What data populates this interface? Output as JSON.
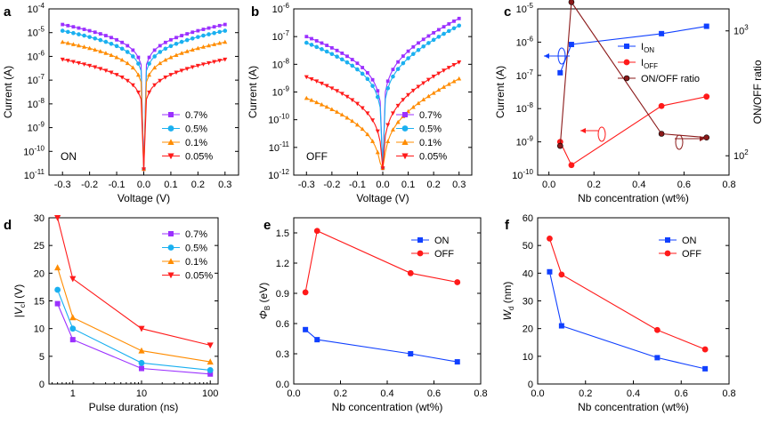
{
  "figure": {
    "panel_letters": [
      "a",
      "b",
      "c",
      "d",
      "e",
      "f"
    ]
  },
  "colors": {
    "p07": "#9b30ff",
    "p05": "#1ab0f0",
    "p01": "#ff8c00",
    "p005": "#ff1a1a",
    "blue": "#1040ff",
    "red": "#ff1a1a",
    "darkred": "#8b1a1a"
  },
  "chart_data": [
    {
      "panel": "a",
      "type": "line",
      "log_y": true,
      "xlim": [
        -0.35,
        0.35
      ],
      "ylim_exp": [
        -11,
        -4
      ],
      "xticks": [
        "-0.3",
        "-0.2",
        "-0.1",
        "0.0",
        "0.1",
        "0.2",
        "0.3"
      ],
      "yticks": [
        "10-11",
        "10-10",
        "10-9",
        "10-8",
        "10-7",
        "10-6",
        "10-5",
        "10-4"
      ],
      "xlabel": "Voltage (V)",
      "ylabel": "Current (A)",
      "annotation": "ON",
      "legend_position": "lower-right",
      "series": [
        {
          "name": "0.7%",
          "marker": "square",
          "color_key": "p07",
          "i_at_max": 2.2e-05
        },
        {
          "name": "0.5%",
          "marker": "circle",
          "color_key": "p05",
          "i_at_max": 1.2e-05
        },
        {
          "name": "0.1%",
          "marker": "triangle-up",
          "color_key": "p01",
          "i_at_max": 4e-06
        },
        {
          "name": "0.05%",
          "marker": "triangle-down",
          "color_key": "p005",
          "i_at_max": 7.5e-07
        }
      ]
    },
    {
      "panel": "b",
      "type": "line",
      "log_y": true,
      "xlim": [
        -0.35,
        0.35
      ],
      "ylim_exp": [
        -12,
        -6
      ],
      "xticks": [
        "-0.3",
        "-0.2",
        "-0.1",
        "0.0",
        "0.1",
        "0.2",
        "0.3"
      ],
      "yticks": [
        "10-12",
        "10-11",
        "10-10",
        "10-9",
        "10-8",
        "10-7",
        "10-6"
      ],
      "xlabel": "Voltage (V)",
      "ylabel": "Current (A)",
      "annotation": "OFF",
      "legend_position": "lower-right",
      "series": [
        {
          "name": "0.7%",
          "marker": "square",
          "color_key": "p07",
          "i_at_neg": 1e-07,
          "i_at_pos": 4.5e-07
        },
        {
          "name": "0.5%",
          "marker": "circle",
          "color_key": "p05",
          "i_at_neg": 6e-08,
          "i_at_pos": 2.5e-07
        },
        {
          "name": "0.1%",
          "marker": "triangle-up",
          "color_key": "p01",
          "i_at_neg": 6e-10,
          "i_at_pos": 3e-09
        },
        {
          "name": "0.05%",
          "marker": "triangle-down",
          "color_key": "p005",
          "i_at_neg": 3.5e-09,
          "i_at_pos": 1.2e-08
        }
      ]
    },
    {
      "panel": "c",
      "type": "line",
      "log_y": true,
      "xlim": [
        -0.05,
        0.8
      ],
      "ylim_exp": [
        -10,
        -5
      ],
      "y2_log": true,
      "y2lim": [
        70,
        1500
      ],
      "xticks": [
        "0.0",
        "0.2",
        "0.4",
        "0.6",
        "0.8"
      ],
      "yticks": [
        "10-10",
        "10-9",
        "10-8",
        "10-7",
        "10-6",
        "10-5"
      ],
      "y2ticks": [
        "102",
        "103"
      ],
      "xlabel": "Nb concentration (wt%)",
      "ylabel": "Current (A)",
      "y2label": "ON/OFF ratio",
      "legend_position": "middle-right",
      "series": [
        {
          "name": "ION",
          "name_main": "I",
          "name_sub": "ON",
          "marker": "square",
          "color_key": "blue",
          "axis": "left",
          "x": [
            0.05,
            0.1,
            0.5,
            0.7
          ],
          "y": [
            1.2e-07,
            8.5e-07,
            1.8e-06,
            3e-06
          ]
        },
        {
          "name": "IOFF",
          "name_main": "I",
          "name_sub": "OFF",
          "marker": "circle",
          "color_key": "red",
          "axis": "left",
          "x": [
            0.05,
            0.1,
            0.5,
            0.7
          ],
          "y": [
            1e-09,
            2e-10,
            1.2e-08,
            2.3e-08
          ]
        },
        {
          "name": "ON/OFF ratio",
          "marker": "ball",
          "color_key": "darkred",
          "axis": "right",
          "x": [
            0.05,
            0.1,
            0.5,
            0.7
          ],
          "y": [
            120,
            1700,
            150,
            140
          ]
        }
      ]
    },
    {
      "panel": "d",
      "type": "line",
      "log_x": true,
      "xlim": [
        0.45,
        130
      ],
      "ylim": [
        0,
        30
      ],
      "xticks": [
        "1",
        "10",
        "100"
      ],
      "yticks": [
        "0",
        "5",
        "10",
        "15",
        "20",
        "25",
        "30"
      ],
      "xlabel": "Pulse duration (ns)",
      "ylabel": "|Vc| (V)",
      "legend_position": "top-right",
      "series": [
        {
          "name": "0.7%",
          "marker": "square",
          "color_key": "p07",
          "x": [
            0.6,
            1,
            10,
            100
          ],
          "y": [
            14.5,
            8,
            2.8,
            1.8
          ]
        },
        {
          "name": "0.5%",
          "marker": "circle",
          "color_key": "p05",
          "x": [
            0.6,
            1,
            10,
            100
          ],
          "y": [
            17,
            10,
            3.8,
            2.5
          ]
        },
        {
          "name": "0.1%",
          "marker": "triangle-up",
          "color_key": "p01",
          "x": [
            0.6,
            1,
            10,
            100
          ],
          "y": [
            21,
            12,
            6,
            4
          ]
        },
        {
          "name": "0.05%",
          "marker": "triangle-down",
          "color_key": "p005",
          "x": [
            0.6,
            1,
            10,
            100
          ],
          "y": [
            30,
            19,
            10,
            7
          ]
        }
      ]
    },
    {
      "panel": "e",
      "type": "line",
      "xlim": [
        0,
        0.8
      ],
      "ylim": [
        0,
        1.65
      ],
      "xticks": [
        "0.0",
        "0.2",
        "0.4",
        "0.6",
        "0.8"
      ],
      "yticks": [
        "0.0",
        "0.3",
        "0.6",
        "0.9",
        "1.2",
        "1.5"
      ],
      "xlabel": "Nb concentration (wt%)",
      "ylabel": "ΦB (eV)",
      "legend_position": "top-right",
      "series": [
        {
          "name": "ON",
          "marker": "square",
          "color_key": "blue",
          "x": [
            0.05,
            0.1,
            0.5,
            0.7
          ],
          "y": [
            0.54,
            0.44,
            0.3,
            0.22
          ]
        },
        {
          "name": "OFF",
          "marker": "circle",
          "color_key": "red",
          "x": [
            0.05,
            0.1,
            0.5,
            0.7
          ],
          "y": [
            0.91,
            1.52,
            1.1,
            1.01
          ]
        }
      ]
    },
    {
      "panel": "f",
      "type": "line",
      "xlim": [
        0,
        0.8
      ],
      "ylim": [
        0,
        60
      ],
      "xticks": [
        "0.0",
        "0.2",
        "0.4",
        "0.6",
        "0.8"
      ],
      "yticks": [
        "0",
        "10",
        "20",
        "30",
        "40",
        "50",
        "60"
      ],
      "xlabel": "Nb concentration (wt%)",
      "ylabel": "Wd (nm)",
      "legend_position": "top-right",
      "series": [
        {
          "name": "ON",
          "marker": "square",
          "color_key": "blue",
          "x": [
            0.05,
            0.1,
            0.5,
            0.7
          ],
          "y": [
            40.5,
            21,
            9.5,
            5.5
          ]
        },
        {
          "name": "OFF",
          "marker": "circle",
          "color_key": "red",
          "x": [
            0.05,
            0.1,
            0.5,
            0.7
          ],
          "y": [
            52.5,
            39.5,
            19.5,
            12.5
          ]
        }
      ]
    }
  ]
}
